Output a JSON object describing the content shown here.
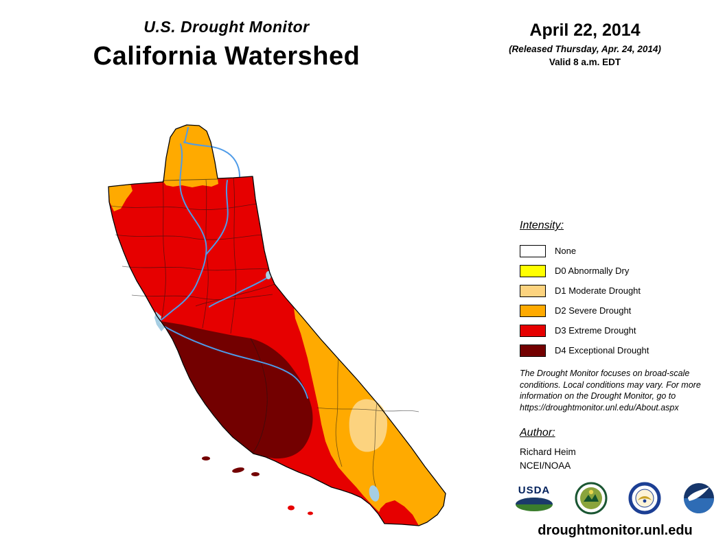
{
  "header": {
    "title_line1": "U.S. Drought Monitor",
    "title_line2": "California Watershed",
    "date": "April 22, 2014",
    "released": "(Released Thursday, Apr. 24, 2014)",
    "valid": "Valid 8 a.m. EDT"
  },
  "legend": {
    "heading": "Intensity:",
    "items": [
      {
        "label": "None",
        "color": "#FFFFFF"
      },
      {
        "label": "D0 Abnormally Dry",
        "color": "#FFFF00"
      },
      {
        "label": "D1 Moderate Drought",
        "color": "#FCD37F"
      },
      {
        "label": "D2 Severe Drought",
        "color": "#FFAA00"
      },
      {
        "label": "D3 Extreme Drought",
        "color": "#E60000"
      },
      {
        "label": "D4 Exceptional Drought",
        "color": "#730000"
      }
    ]
  },
  "disclaimer": "The Drought Monitor focuses on broad-scale conditions. Local conditions may vary. For more information on the Drought Monitor, go to https://droughtmonitor.unl.edu/About.aspx",
  "author": {
    "heading": "Author:",
    "name": "Richard Heim",
    "org": "NCEI/NOAA"
  },
  "logos": {
    "usda_text": "USDA"
  },
  "footer": {
    "url": "droughtmonitor.unl.edu"
  },
  "map": {
    "region": "California Watershed",
    "colors": {
      "none": "#FFFFFF",
      "d0": "#FFFF00",
      "d1": "#FCD37F",
      "d2": "#FFAA00",
      "d3": "#E60000",
      "d4": "#730000",
      "river": "#4E9BE8",
      "lake": "#A6CEE3",
      "outline": "#000000"
    }
  }
}
